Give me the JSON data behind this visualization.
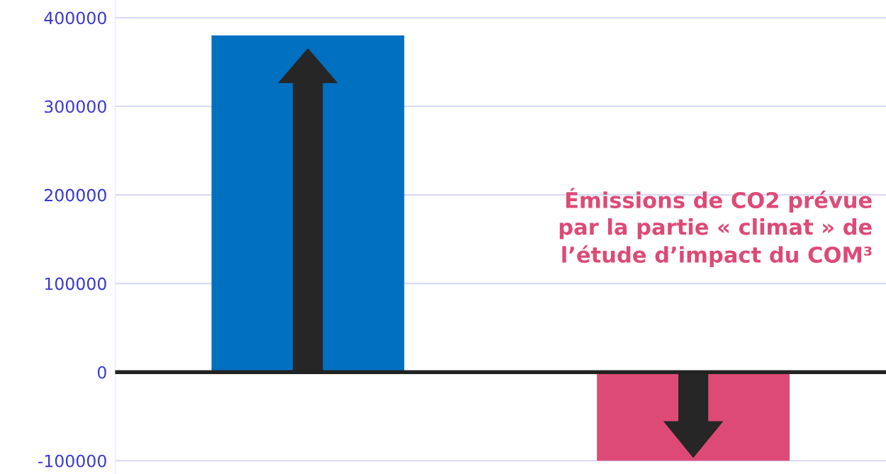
{
  "chart_data": {
    "type": "bar",
    "categories": [
      null,
      null
    ],
    "values": [
      380000,
      -100000
    ],
    "colors": [
      "#0070c0",
      "#dd4a76"
    ],
    "ylim": [
      -115000,
      420000
    ],
    "yticks": [
      -100000,
      0,
      100000,
      200000,
      300000,
      400000
    ],
    "grid": "y",
    "ref_lines": [
      {
        "axis": "y",
        "value": 0,
        "color": "#222222"
      }
    ],
    "annotations": [
      "Émissions de CO2 prévue\npar la partie « climat » de\nl’étude d’impact du COM³"
    ]
  }
}
